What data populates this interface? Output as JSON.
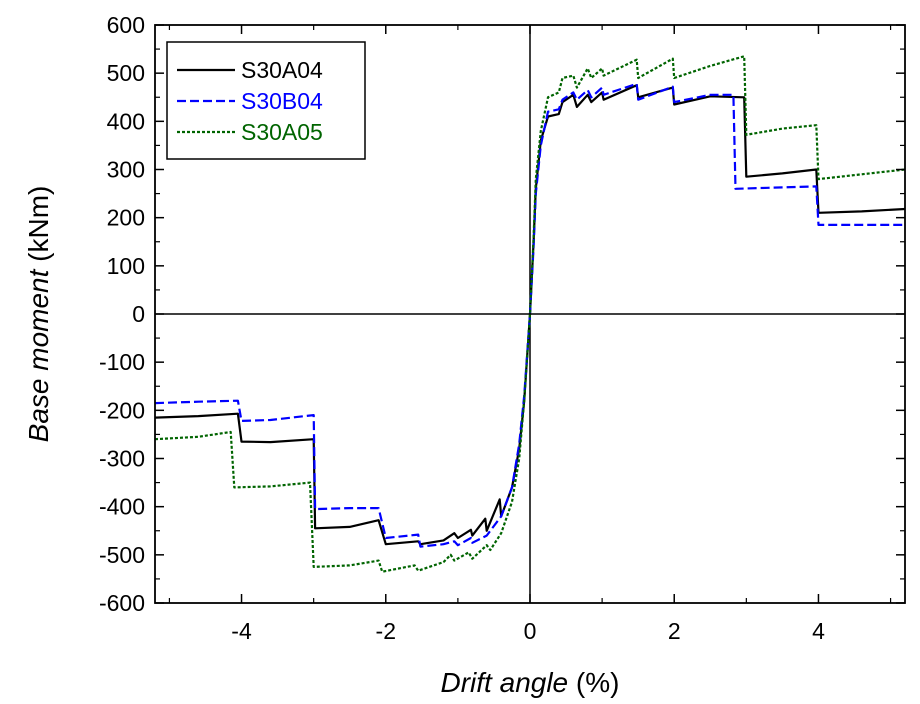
{
  "chart_data": {
    "type": "line",
    "xlabel": {
      "italic": "Drift angle",
      "unit": "(%)"
    },
    "ylabel": {
      "italic": "Base moment",
      "unit": "(kNm)"
    },
    "xlim": [
      -5.2,
      5.2
    ],
    "ylim": [
      -600,
      600
    ],
    "xticks": [
      -4,
      -2,
      0,
      2,
      4
    ],
    "yticks": [
      -600,
      -500,
      -400,
      -300,
      -200,
      -100,
      0,
      100,
      200,
      300,
      400,
      500,
      600
    ],
    "xtick_labels": [
      "-4",
      "-2",
      "0",
      "2",
      "4"
    ],
    "ytick_labels": [
      "-600",
      "-500",
      "-400",
      "-300",
      "-200",
      "-100",
      "0",
      "100",
      "200",
      "300",
      "400",
      "500",
      "600"
    ],
    "grid": false,
    "zero_lines": true,
    "legend_position": "top-left",
    "series": [
      {
        "name": "S30A04",
        "color": "#000000",
        "dash": "solid",
        "points": [
          [
            -5.2,
            -215
          ],
          [
            -4.6,
            -212
          ],
          [
            -4.05,
            -207
          ],
          [
            -4.0,
            -265
          ],
          [
            -3.6,
            -266
          ],
          [
            -3.0,
            -260
          ],
          [
            -2.98,
            -445
          ],
          [
            -2.5,
            -442
          ],
          [
            -2.1,
            -428
          ],
          [
            -2.0,
            -478
          ],
          [
            -1.55,
            -472
          ],
          [
            -1.52,
            -478
          ],
          [
            -1.2,
            -470
          ],
          [
            -1.05,
            -455
          ],
          [
            -1.0,
            -465
          ],
          [
            -0.82,
            -448
          ],
          [
            -0.8,
            -460
          ],
          [
            -0.62,
            -425
          ],
          [
            -0.6,
            -450
          ],
          [
            -0.42,
            -385
          ],
          [
            -0.4,
            -420
          ],
          [
            -0.25,
            -360
          ],
          [
            -0.15,
            -280
          ],
          [
            -0.08,
            -180
          ],
          [
            0.0,
            0
          ],
          [
            0.05,
            150
          ],
          [
            0.08,
            260
          ],
          [
            0.15,
            360
          ],
          [
            0.25,
            410
          ],
          [
            0.4,
            415
          ],
          [
            0.45,
            440
          ],
          [
            0.6,
            455
          ],
          [
            0.65,
            430
          ],
          [
            0.8,
            455
          ],
          [
            0.85,
            440
          ],
          [
            1.0,
            460
          ],
          [
            1.02,
            445
          ],
          [
            1.48,
            475
          ],
          [
            1.5,
            450
          ],
          [
            1.98,
            470
          ],
          [
            2.0,
            435
          ],
          [
            2.5,
            452
          ],
          [
            2.97,
            450
          ],
          [
            3.0,
            285
          ],
          [
            3.5,
            292
          ],
          [
            3.97,
            300
          ],
          [
            4.0,
            210
          ],
          [
            4.6,
            213
          ],
          [
            5.2,
            218
          ]
        ]
      },
      {
        "name": "S30B04",
        "color": "#0000ff",
        "dash": "dashed",
        "points": [
          [
            -5.2,
            -185
          ],
          [
            -4.6,
            -182
          ],
          [
            -4.05,
            -180
          ],
          [
            -4.0,
            -222
          ],
          [
            -3.6,
            -220
          ],
          [
            -3.0,
            -210
          ],
          [
            -2.98,
            -405
          ],
          [
            -2.5,
            -403
          ],
          [
            -2.1,
            -403
          ],
          [
            -2.0,
            -465
          ],
          [
            -1.55,
            -458
          ],
          [
            -1.52,
            -483
          ],
          [
            -1.2,
            -478
          ],
          [
            -1.05,
            -472
          ],
          [
            -1.0,
            -480
          ],
          [
            -0.82,
            -465
          ],
          [
            -0.8,
            -475
          ],
          [
            -0.6,
            -460
          ],
          [
            -0.4,
            -420
          ],
          [
            -0.25,
            -360
          ],
          [
            -0.15,
            -270
          ],
          [
            -0.08,
            -170
          ],
          [
            0.0,
            0
          ],
          [
            0.05,
            140
          ],
          [
            0.08,
            250
          ],
          [
            0.15,
            350
          ],
          [
            0.25,
            420
          ],
          [
            0.4,
            425
          ],
          [
            0.45,
            445
          ],
          [
            0.6,
            460
          ],
          [
            0.65,
            445
          ],
          [
            0.8,
            465
          ],
          [
            0.85,
            450
          ],
          [
            1.0,
            470
          ],
          [
            1.02,
            455
          ],
          [
            1.48,
            478
          ],
          [
            1.5,
            445
          ],
          [
            1.98,
            472
          ],
          [
            2.0,
            440
          ],
          [
            2.5,
            455
          ],
          [
            2.82,
            455
          ],
          [
            2.85,
            260
          ],
          [
            3.3,
            262
          ],
          [
            3.97,
            265
          ],
          [
            4.0,
            185
          ],
          [
            4.6,
            185
          ],
          [
            5.2,
            185
          ]
        ]
      },
      {
        "name": "S30A05",
        "color": "#006400",
        "dash": "dotted",
        "points": [
          [
            -5.2,
            -260
          ],
          [
            -4.6,
            -255
          ],
          [
            -4.15,
            -245
          ],
          [
            -4.1,
            -360
          ],
          [
            -3.6,
            -358
          ],
          [
            -3.05,
            -350
          ],
          [
            -3.0,
            -525
          ],
          [
            -2.5,
            -522
          ],
          [
            -2.1,
            -512
          ],
          [
            -2.05,
            -535
          ],
          [
            -1.6,
            -522
          ],
          [
            -1.55,
            -533
          ],
          [
            -1.2,
            -515
          ],
          [
            -1.1,
            -500
          ],
          [
            -1.05,
            -512
          ],
          [
            -0.85,
            -495
          ],
          [
            -0.8,
            -508
          ],
          [
            -0.6,
            -480
          ],
          [
            -0.55,
            -490
          ],
          [
            -0.4,
            -455
          ],
          [
            -0.25,
            -390
          ],
          [
            -0.15,
            -300
          ],
          [
            -0.08,
            -180
          ],
          [
            0.0,
            0
          ],
          [
            0.05,
            160
          ],
          [
            0.08,
            280
          ],
          [
            0.15,
            380
          ],
          [
            0.25,
            450
          ],
          [
            0.4,
            460
          ],
          [
            0.45,
            490
          ],
          [
            0.6,
            495
          ],
          [
            0.65,
            470
          ],
          [
            0.8,
            510
          ],
          [
            0.85,
            490
          ],
          [
            1.0,
            510
          ],
          [
            1.02,
            495
          ],
          [
            1.48,
            528
          ],
          [
            1.5,
            490
          ],
          [
            1.98,
            530
          ],
          [
            2.0,
            490
          ],
          [
            2.5,
            515
          ],
          [
            2.97,
            535
          ],
          [
            3.0,
            372
          ],
          [
            3.5,
            385
          ],
          [
            3.97,
            392
          ],
          [
            4.0,
            280
          ],
          [
            4.6,
            290
          ],
          [
            5.2,
            300
          ]
        ]
      }
    ]
  }
}
